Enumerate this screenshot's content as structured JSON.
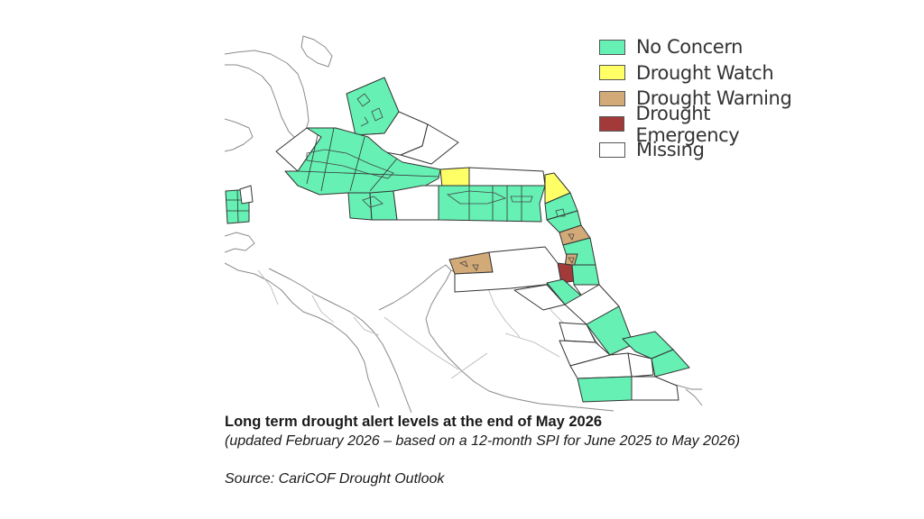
{
  "colors": {
    "no_concern": "#66f0b4",
    "drought_watch": "#ffff66",
    "drought_warning": "#d2aa78",
    "drought_emergency": "#a33a3a",
    "missing": "#ffffff"
  },
  "legend": {
    "items": [
      {
        "label": "No Concern",
        "color": "#66f0b4"
      },
      {
        "label": "Drought Watch",
        "color": "#ffff66"
      },
      {
        "label": "Drought Warning",
        "color": "#d2aa78"
      },
      {
        "label": "Drought Emergency",
        "color": "#a33a3a"
      },
      {
        "label": "Missing",
        "color": "#ffffff"
      }
    ]
  },
  "caption": {
    "title": "Long term drought alert levels at the end of May 2026",
    "subtitle": "(updated February 2026 – based on a 12-month SPI for June 2025 to May 2026)",
    "source": "Source: CariCOF Drought Outlook"
  }
}
